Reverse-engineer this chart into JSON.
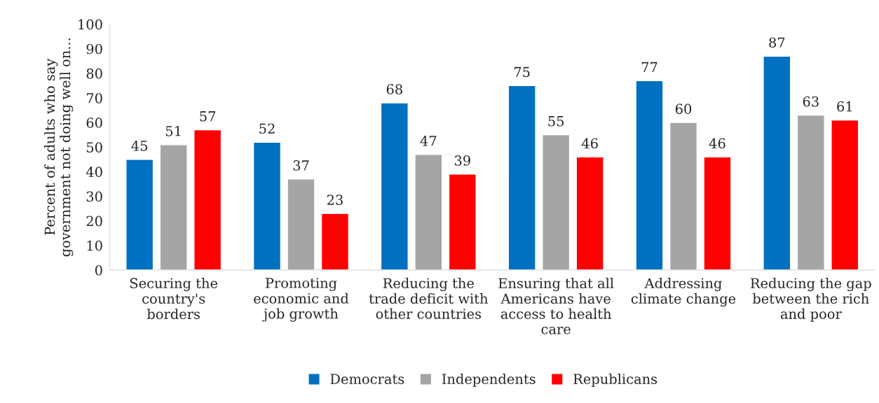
{
  "chart_data": {
    "type": "bar",
    "ylabel": "Percent of adults who say\ngovernment not doing well on...",
    "categories": [
      "Securing the\ncountry's\nborders",
      "Promoting\neconomic and\njob growth",
      "Reducing the\ntrade deficit with\nother countries",
      "Ensuring that all\nAmericans have\naccess to health\ncare",
      "Addressing\nclimate change",
      "Reducing the gap\nbetween the rich\nand poor"
    ],
    "series": [
      {
        "name": "Democrats",
        "color": "#0070c0",
        "values": [
          45,
          52,
          68,
          75,
          77,
          87
        ]
      },
      {
        "name": "Independents",
        "color": "#a5a5a5",
        "values": [
          51,
          37,
          47,
          55,
          60,
          63
        ]
      },
      {
        "name": "Republicans",
        "color": "#ff0000",
        "values": [
          57,
          23,
          39,
          46,
          46,
          61
        ]
      }
    ],
    "ylim": [
      0,
      100
    ],
    "yticks": [
      0,
      10,
      20,
      30,
      40,
      50,
      60,
      70,
      80,
      90,
      100
    ],
    "data_labels": true,
    "grid": false,
    "legend": "bottom"
  }
}
